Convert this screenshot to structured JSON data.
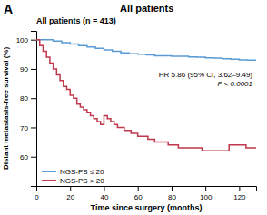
{
  "chart_data": {
    "type": "line",
    "line_style": "step",
    "title": "All patients",
    "subtitle": "All patients (n = 413)",
    "x_label": "Time since surgery (months)",
    "y_label": "Distant metastasis-free survival (%)",
    "annotations": [
      "A",
      "HR 5.86 (95% CI, 3.62–9.49)",
      "P < 0.0001"
    ],
    "xlim": [
      0,
      130
    ],
    "ylim": [
      50,
      103
    ],
    "xticks": [
      0,
      20,
      40,
      60,
      80,
      100,
      120
    ],
    "yticks": [
      60,
      70,
      80,
      90,
      100
    ],
    "grid": false,
    "legend": "lower left",
    "series": [
      {
        "name": "NGS-PS ≤ 20",
        "color": "#5b9bd5",
        "x": [
          0,
          3,
          5,
          8,
          10,
          13,
          15,
          18,
          20,
          23,
          25,
          28,
          30,
          33,
          35,
          38,
          40,
          43,
          45,
          48,
          50,
          53,
          55,
          58,
          60,
          65,
          70,
          75,
          80,
          85,
          90,
          95,
          100,
          105,
          110,
          115,
          120,
          125,
          130
        ],
        "values": [
          100,
          100,
          100,
          100,
          99.5,
          99.5,
          99,
          99,
          98.5,
          98.5,
          98,
          98,
          97.5,
          97.5,
          97,
          97,
          96.5,
          96.5,
          96,
          96,
          95.5,
          95.5,
          95.2,
          95.2,
          95,
          94.8,
          94.5,
          94.5,
          94.3,
          94.3,
          94.1,
          94,
          93.8,
          93.7,
          93.5,
          93.3,
          93.1,
          93,
          93
        ]
      },
      {
        "name": "NGS-PS > 20",
        "color": "#c0384b",
        "x": [
          0,
          2,
          4,
          6,
          8,
          10,
          12,
          14,
          16,
          18,
          20,
          22,
          24,
          26,
          28,
          30,
          32,
          34,
          36,
          38,
          40,
          42,
          44,
          46,
          48,
          50,
          52,
          54,
          56,
          58,
          60,
          62,
          64,
          66,
          68,
          70,
          72,
          74,
          76,
          78,
          80,
          82,
          84,
          86,
          88,
          90,
          92,
          94,
          96,
          98,
          100,
          102,
          104,
          106,
          108,
          110,
          112,
          114,
          116,
          118,
          120,
          122,
          124,
          126,
          128,
          130
        ],
        "values": [
          100,
          98,
          96,
          94,
          92,
          90,
          88,
          86,
          84,
          83,
          81,
          80,
          78,
          77,
          76,
          75,
          74,
          73,
          72,
          71,
          74,
          73,
          72,
          71,
          70,
          70,
          69,
          69,
          68,
          68,
          67,
          67,
          67,
          66,
          66,
          65,
          65,
          65,
          65,
          64,
          64,
          64,
          63,
          63,
          63,
          63,
          63,
          63,
          63,
          62,
          62,
          62,
          62,
          62,
          62,
          62,
          62,
          64,
          64,
          64,
          64,
          64,
          63,
          63,
          63,
          63
        ]
      }
    ]
  }
}
